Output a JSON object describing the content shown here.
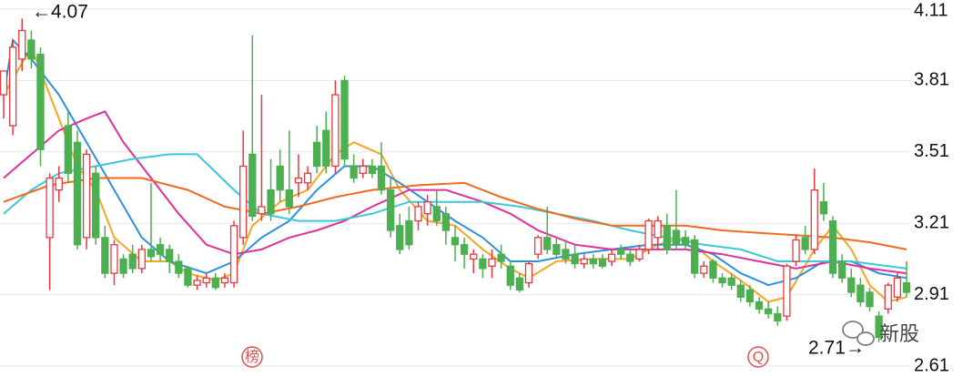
{
  "chart_data": {
    "type": "candlestick",
    "ohlc": [
      [
        3.75,
        3.85,
        3.65,
        3.85
      ],
      [
        3.62,
        3.98,
        3.58,
        3.95
      ],
      [
        3.9,
        4.07,
        3.85,
        4.02
      ],
      [
        3.98,
        4.02,
        3.86,
        3.9
      ],
      [
        3.92,
        3.95,
        3.45,
        3.52
      ],
      [
        3.15,
        3.42,
        2.93,
        3.4
      ],
      [
        3.35,
        3.45,
        3.3,
        3.4
      ],
      [
        3.62,
        3.68,
        3.38,
        3.42
      ],
      [
        3.55,
        3.6,
        3.1,
        3.12
      ],
      [
        3.15,
        3.52,
        3.1,
        3.5
      ],
      [
        3.42,
        3.45,
        3.12,
        3.15
      ],
      [
        3.15,
        3.2,
        2.98,
        3.0
      ],
      [
        3.0,
        3.14,
        2.95,
        3.12
      ],
      [
        3.06,
        3.08,
        2.98,
        3.0
      ],
      [
        3.08,
        3.12,
        3.0,
        3.02
      ],
      [
        3.02,
        3.12,
        3.0,
        3.1
      ],
      [
        3.1,
        3.38,
        3.05,
        3.07
      ],
      [
        3.12,
        3.15,
        3.05,
        3.08
      ],
      [
        3.1,
        3.12,
        3.0,
        3.05
      ],
      [
        3.05,
        3.08,
        2.98,
        3.0
      ],
      [
        3.02,
        3.03,
        2.94,
        2.95
      ],
      [
        2.95,
        2.99,
        2.93,
        2.97
      ],
      [
        2.96,
        3.0,
        2.94,
        2.98
      ],
      [
        2.98,
        3.0,
        2.93,
        2.94
      ],
      [
        2.96,
        3.0,
        2.94,
        2.98
      ],
      [
        2.96,
        3.22,
        2.94,
        3.2
      ],
      [
        3.15,
        3.6,
        3.12,
        3.45
      ],
      [
        3.5,
        4.0,
        3.22,
        3.24
      ],
      [
        3.25,
        3.75,
        3.22,
        3.28
      ],
      [
        3.35,
        3.48,
        3.22,
        3.25
      ],
      [
        3.45,
        3.52,
        3.3,
        3.35
      ],
      [
        3.35,
        3.6,
        3.25,
        3.28
      ],
      [
        3.38,
        3.5,
        3.32,
        3.4
      ],
      [
        3.38,
        3.45,
        3.35,
        3.42
      ],
      [
        3.55,
        3.62,
        3.42,
        3.45
      ],
      [
        3.6,
        3.68,
        3.42,
        3.45
      ],
      [
        3.45,
        3.81,
        3.42,
        3.75
      ],
      [
        3.81,
        3.83,
        3.45,
        3.48
      ],
      [
        3.45,
        3.5,
        3.38,
        3.4
      ],
      [
        3.42,
        3.48,
        3.4,
        3.45
      ],
      [
        3.45,
        3.48,
        3.4,
        3.42
      ],
      [
        3.45,
        3.55,
        3.33,
        3.35
      ],
      [
        3.35,
        3.4,
        3.15,
        3.18
      ],
      [
        3.2,
        3.25,
        3.08,
        3.1
      ],
      [
        3.22,
        3.28,
        3.1,
        3.12
      ],
      [
        3.22,
        3.3,
        3.18,
        3.28
      ],
      [
        3.25,
        3.33,
        3.2,
        3.3
      ],
      [
        3.28,
        3.35,
        3.2,
        3.22
      ],
      [
        3.25,
        3.28,
        3.12,
        3.18
      ],
      [
        3.15,
        3.2,
        3.05,
        3.12
      ],
      [
        3.12,
        3.15,
        3.02,
        3.08
      ],
      [
        3.06,
        3.1,
        3.0,
        3.08
      ],
      [
        3.06,
        3.08,
        2.98,
        3.02
      ],
      [
        3.03,
        3.1,
        2.98,
        3.06
      ],
      [
        3.08,
        3.12,
        3.02,
        3.05
      ],
      [
        3.03,
        3.05,
        2.93,
        2.95
      ],
      [
        2.98,
        3.0,
        2.92,
        2.93
      ],
      [
        2.96,
        3.05,
        2.94,
        3.04
      ],
      [
        3.08,
        3.16,
        3.06,
        3.15
      ],
      [
        3.15,
        3.28,
        3.08,
        3.1
      ],
      [
        3.12,
        3.15,
        3.06,
        3.08
      ],
      [
        3.1,
        3.14,
        3.04,
        3.06
      ],
      [
        3.08,
        3.12,
        3.02,
        3.04
      ],
      [
        3.04,
        3.08,
        3.02,
        3.06
      ],
      [
        3.06,
        3.08,
        3.02,
        3.04
      ],
      [
        3.06,
        3.08,
        3.02,
        3.03
      ],
      [
        3.05,
        3.1,
        3.03,
        3.08
      ],
      [
        3.1,
        3.12,
        3.06,
        3.08
      ],
      [
        3.08,
        3.1,
        3.03,
        3.05
      ],
      [
        3.06,
        3.12,
        3.05,
        3.1
      ],
      [
        3.1,
        3.23,
        3.08,
        3.22
      ],
      [
        3.15,
        3.24,
        3.1,
        3.22
      ],
      [
        3.2,
        3.25,
        3.08,
        3.1
      ],
      [
        3.18,
        3.35,
        3.1,
        3.12
      ],
      [
        3.15,
        3.18,
        3.1,
        3.12
      ],
      [
        3.14,
        3.16,
        2.98,
        3.0
      ],
      [
        3.0,
        3.05,
        2.98,
        3.03
      ],
      [
        3.05,
        3.06,
        2.96,
        2.98
      ],
      [
        2.98,
        3.0,
        2.94,
        2.96
      ],
      [
        2.98,
        3.0,
        2.93,
        2.95
      ],
      [
        2.95,
        2.97,
        2.88,
        2.9
      ],
      [
        2.93,
        2.95,
        2.86,
        2.88
      ],
      [
        2.88,
        2.9,
        2.83,
        2.85
      ],
      [
        2.85,
        2.88,
        2.81,
        2.83
      ],
      [
        2.83,
        2.86,
        2.78,
        2.8
      ],
      [
        2.82,
        3.04,
        2.8,
        3.03
      ],
      [
        3.05,
        3.16,
        3.03,
        3.14
      ],
      [
        3.15,
        3.2,
        3.08,
        3.1
      ],
      [
        3.1,
        3.44,
        3.08,
        3.35
      ],
      [
        3.3,
        3.38,
        3.22,
        3.25
      ],
      [
        3.22,
        3.24,
        2.98,
        3.0
      ],
      [
        3.05,
        3.08,
        2.96,
        2.98
      ],
      [
        2.98,
        3.02,
        2.9,
        2.92
      ],
      [
        2.95,
        2.98,
        2.86,
        2.88
      ],
      [
        2.92,
        2.94,
        2.84,
        2.86
      ],
      [
        2.82,
        2.84,
        2.71,
        2.73
      ],
      [
        2.85,
        2.96,
        2.83,
        2.95
      ],
      [
        2.9,
        3.0,
        2.88,
        2.98
      ],
      [
        2.96,
        3.05,
        2.9,
        2.92
      ]
    ],
    "up_color": "#e8383d",
    "down_color": "#4caf50",
    "series": [
      {
        "color": "#f5a623",
        "x": [
          0,
          3,
          5,
          8,
          10,
          12,
          15,
          18,
          20,
          23,
          25,
          27,
          30,
          33,
          36,
          38,
          41,
          43,
          46,
          49,
          52,
          55,
          57,
          60,
          64,
          68,
          71,
          74,
          77,
          80,
          83,
          85,
          88,
          90,
          92,
          94,
          96,
          98
        ],
        "values": [
          3.75,
          3.95,
          3.75,
          3.45,
          3.35,
          3.15,
          3.05,
          3.05,
          3.0,
          2.97,
          3.0,
          3.2,
          3.3,
          3.35,
          3.5,
          3.55,
          3.5,
          3.35,
          3.22,
          3.2,
          3.1,
          3.02,
          2.98,
          3.05,
          3.06,
          3.06,
          3.12,
          3.15,
          3.05,
          2.97,
          2.88,
          2.9,
          3.1,
          3.2,
          3.1,
          2.95,
          2.88,
          2.9
        ]
      },
      {
        "color": "#2f8fe0",
        "x": [
          0,
          1,
          3,
          6,
          9,
          12,
          15,
          18,
          22,
          25,
          28,
          31,
          34,
          37,
          40,
          43,
          46,
          49,
          52,
          55,
          58,
          62,
          66,
          70,
          74,
          77,
          80,
          83,
          86,
          89,
          92,
          95,
          98
        ],
        "values": [
          3.75,
          3.98,
          3.9,
          3.75,
          3.55,
          3.35,
          3.15,
          3.05,
          3.0,
          3.05,
          3.15,
          3.22,
          3.35,
          3.45,
          3.45,
          3.38,
          3.3,
          3.22,
          3.15,
          3.05,
          3.05,
          3.08,
          3.1,
          3.12,
          3.12,
          3.08,
          3.0,
          2.95,
          2.98,
          3.05,
          3.05,
          3.0,
          2.98
        ]
      },
      {
        "color": "#e0309a",
        "x": [
          0,
          3,
          6,
          9,
          11,
          13,
          16,
          19,
          22,
          25,
          28,
          31,
          34,
          37,
          40,
          44,
          48,
          52,
          55,
          58,
          62,
          66,
          70,
          74,
          78,
          82,
          86,
          90,
          94,
          98
        ],
        "values": [
          3.4,
          3.5,
          3.6,
          3.65,
          3.68,
          3.55,
          3.4,
          3.25,
          3.12,
          3.08,
          3.1,
          3.15,
          3.18,
          3.22,
          3.28,
          3.35,
          3.35,
          3.3,
          3.25,
          3.18,
          3.12,
          3.1,
          3.1,
          3.1,
          3.08,
          3.05,
          3.02,
          3.05,
          3.02,
          3.0
        ]
      },
      {
        "color": "#3cc8d8",
        "x": [
          0,
          3,
          6,
          10,
          14,
          18,
          21,
          25,
          28,
          32,
          36,
          40,
          44,
          48,
          52,
          56,
          60,
          64,
          68,
          72,
          76,
          80,
          84,
          88,
          92,
          96,
          98
        ],
        "values": [
          3.25,
          3.35,
          3.42,
          3.45,
          3.48,
          3.5,
          3.5,
          3.35,
          3.25,
          3.22,
          3.22,
          3.25,
          3.3,
          3.3,
          3.3,
          3.28,
          3.25,
          3.22,
          3.18,
          3.15,
          3.12,
          3.1,
          3.05,
          3.05,
          3.05,
          3.03,
          3.02
        ]
      },
      {
        "color": "#f06a20",
        "x": [
          0,
          5,
          10,
          15,
          20,
          24,
          28,
          32,
          36,
          40,
          45,
          50,
          54,
          58,
          62,
          66,
          70,
          74,
          78,
          82,
          86,
          90,
          94,
          98
        ],
        "values": [
          3.3,
          3.37,
          3.4,
          3.4,
          3.35,
          3.28,
          3.25,
          3.28,
          3.32,
          3.35,
          3.37,
          3.38,
          3.32,
          3.27,
          3.23,
          3.2,
          3.2,
          3.2,
          3.18,
          3.17,
          3.16,
          3.15,
          3.13,
          3.1
        ]
      }
    ],
    "ylim": [
      2.61,
      4.11
    ],
    "yticks": [
      4.11,
      3.81,
      3.51,
      3.21,
      2.91,
      2.61
    ],
    "grid": true,
    "annotations": [
      "←4.07",
      "2.71→"
    ],
    "icons": [
      "榜",
      "Q"
    ],
    "watermark": "新股"
  }
}
